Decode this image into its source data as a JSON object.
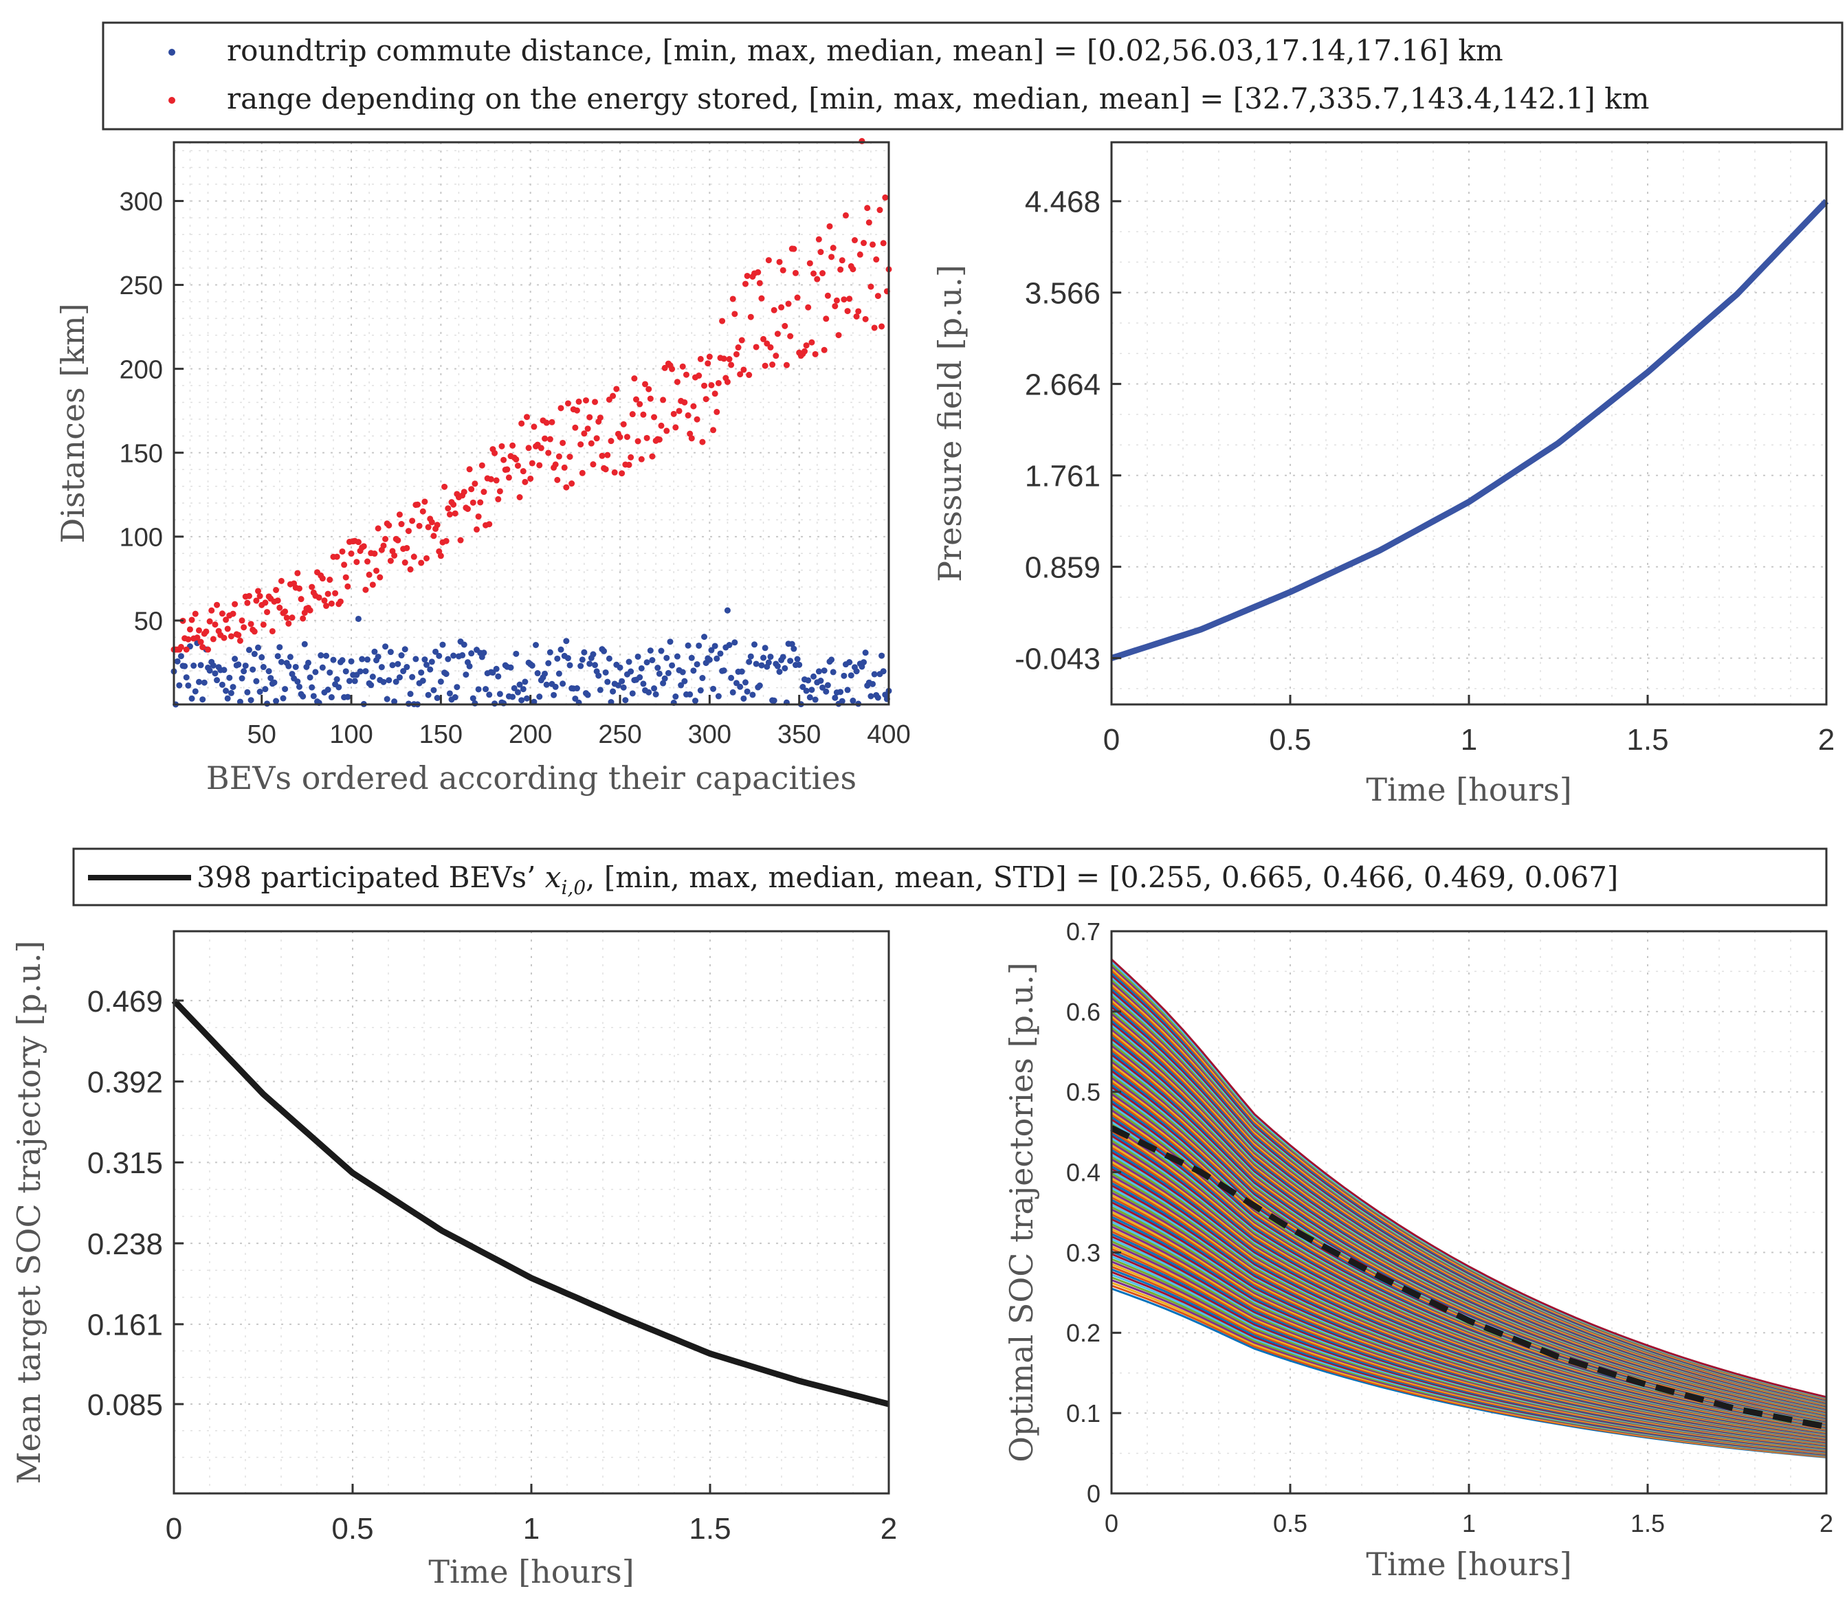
{
  "chart_data": [
    {
      "id": "distances",
      "type": "scatter",
      "xlabel": "BEVs ordered according their capacities",
      "ylabel": "Distances [km]",
      "xlim": [
        1,
        400
      ],
      "ylim": [
        0,
        335
      ],
      "xticks": [
        50,
        100,
        150,
        200,
        250,
        300,
        350,
        400
      ],
      "yticks": [
        50,
        100,
        150,
        200,
        250,
        300
      ],
      "legend": [
        {
          "label": "roundtrip commute distance, [min, max, median, mean] = [0.02,56.03,17.14,17.16] km",
          "color": "#2e4a9e"
        },
        {
          "label": "range depending on the energy stored, [min, max, median, mean] = [32.7,335.7,143.4,142.1] km",
          "color": "#e8242c"
        }
      ],
      "series": [
        {
          "name": "roundtrip commute distance",
          "color": "#2e4a9e",
          "n": 400,
          "min": 0.02,
          "max": 56.03,
          "median": 17.14,
          "mean": 17.16
        },
        {
          "name": "range depending on the energy stored",
          "color": "#e8242c",
          "n": 400,
          "min": 32.7,
          "max": 335.7,
          "median": 143.4,
          "mean": 142.1,
          "trend_x": [
            1,
            50,
            100,
            150,
            200,
            250,
            300,
            320,
            340,
            360,
            380,
            400
          ],
          "trend_y": [
            38,
            55,
            80,
            108,
            150,
            165,
            185,
            225,
            235,
            245,
            262,
            265
          ]
        }
      ]
    },
    {
      "id": "pressure",
      "type": "line",
      "xlabel": "Time [hours]",
      "ylabel": "Pressure field [p.u.]",
      "xlim": [
        0,
        2
      ],
      "ylim": [
        -0.5,
        5.05
      ],
      "xticks": [
        "0",
        "0.5",
        "1",
        "1.5",
        "2"
      ],
      "xtick_values": [
        0,
        0.5,
        1,
        1.5,
        2
      ],
      "yticks": [
        "-0.043",
        "0.859",
        "1.761",
        "2.664",
        "3.566",
        "4.468"
      ],
      "ytick_values": [
        -0.043,
        0.859,
        1.761,
        2.664,
        3.566,
        4.468
      ],
      "x": [
        0,
        0.25,
        0.5,
        0.75,
        1,
        1.25,
        1.5,
        1.75,
        2
      ],
      "y": [
        -0.043,
        0.24,
        0.61,
        1.02,
        1.5,
        2.08,
        2.78,
        3.55,
        4.468
      ],
      "color": "#3a55a4"
    },
    {
      "id": "mean-soc",
      "type": "line",
      "xlabel": "Time [hours]",
      "ylabel": "Mean target SOC trajectory [p.u.]",
      "xlim": [
        0,
        2
      ],
      "ylim": [
        0,
        0.535
      ],
      "xticks": [
        "0",
        "0.5",
        "1",
        "1.5",
        "2"
      ],
      "xtick_values": [
        0,
        0.5,
        1,
        1.5,
        2
      ],
      "yticks": [
        "0.085",
        "0.161",
        "0.238",
        "0.315",
        "0.392",
        "0.469"
      ],
      "ytick_values": [
        0.085,
        0.161,
        0.238,
        0.315,
        0.392,
        0.469
      ],
      "x": [
        0,
        0.25,
        0.5,
        0.75,
        1,
        1.25,
        1.5,
        1.75,
        2
      ],
      "y": [
        0.469,
        0.38,
        0.305,
        0.25,
        0.205,
        0.168,
        0.133,
        0.107,
        0.085
      ],
      "color": "#1a1a1a",
      "legend": [
        {
          "label_pre": "398 participated BEVs’ ",
          "label_math": "x",
          "label_sub": "i,0",
          "label_post": ", [min, max, median, mean, STD] = [0.255, 0.665, 0.466, 0.469, 0.067]",
          "color": "#1a1a1a"
        }
      ]
    },
    {
      "id": "optimal-soc",
      "type": "line",
      "xlabel": "Time [hours]",
      "ylabel": "Optimal SOC trajectories [p.u.]",
      "xlim": [
        0,
        2
      ],
      "ylim": [
        0,
        0.7
      ],
      "xticks": [
        "0",
        "0.5",
        "1",
        "1.5",
        "2"
      ],
      "xtick_values": [
        0,
        0.5,
        1,
        1.5,
        2
      ],
      "yticks": [
        "0",
        "0.1",
        "0.2",
        "0.3",
        "0.4",
        "0.5",
        "0.6",
        "0.7"
      ],
      "ytick_values": [
        0,
        0.1,
        0.2,
        0.3,
        0.4,
        0.5,
        0.6,
        0.7
      ],
      "trajectory_count": 398,
      "initial_min": 0.255,
      "initial_max": 0.665,
      "final_min": 0.045,
      "final_max": 0.12,
      "mean_trajectory": {
        "x": [
          0,
          0.25,
          0.5,
          0.75,
          1,
          1.25,
          1.5,
          1.75,
          2
        ],
        "y": [
          0.455,
          0.4,
          0.33,
          0.27,
          0.215,
          0.17,
          0.135,
          0.105,
          0.083
        ],
        "color": "#1a1a1a",
        "style": "dashed"
      },
      "palette": [
        "#0072bd",
        "#d95319",
        "#edb120",
        "#7e2f8e",
        "#77ac30",
        "#4dbeee",
        "#a2142f"
      ]
    }
  ]
}
